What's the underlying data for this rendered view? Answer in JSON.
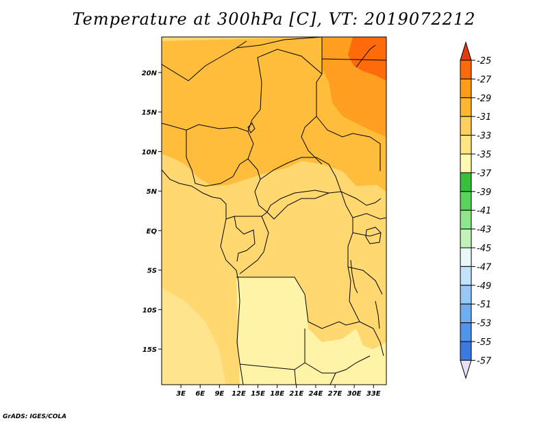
{
  "title": "Temperature at 300hPa [C], VT: 2019072212",
  "credit": "GrADS: IGES/COLA",
  "map": {
    "lon_labels": [
      "3E",
      "6E",
      "9E",
      "12E",
      "15E",
      "18E",
      "21E",
      "24E",
      "27E",
      "30E",
      "33E"
    ],
    "lat_labels": [
      "20N",
      "15N",
      "10N",
      "5N",
      "EQ",
      "5S",
      "10S",
      "15S"
    ],
    "lon_range": [
      0,
      35
    ],
    "lat_range": [
      -19.5,
      24.5
    ]
  },
  "colorbar": {
    "labels": [
      "-25",
      "-27",
      "-29",
      "-31",
      "-33",
      "-35",
      "-37",
      "-39",
      "-41",
      "-43",
      "-45",
      "-47",
      "-49",
      "-51",
      "-53",
      "-55",
      "-57"
    ],
    "colors": [
      "#e8e0f8",
      "#0a1470",
      "#1a3eb4",
      "#2e5ed2",
      "#3c7ae0",
      "#5094ec",
      "#70aef2",
      "#98c8f6",
      "#c4e2fa",
      "#e8f8f8",
      "#c2f2b8",
      "#8ee68a",
      "#5ad45a",
      "#38c038",
      "#fff8b0",
      "#ffe680",
      "#ffd060",
      "#ffb830",
      "#ff9c18",
      "#ff6a0a",
      "#e03c10"
    ]
  },
  "field": {
    "dominant_values": [
      "-31 to -33",
      "-29 to -31",
      "-27 to -29",
      "-25 to -27",
      "-33 to -35"
    ]
  }
}
